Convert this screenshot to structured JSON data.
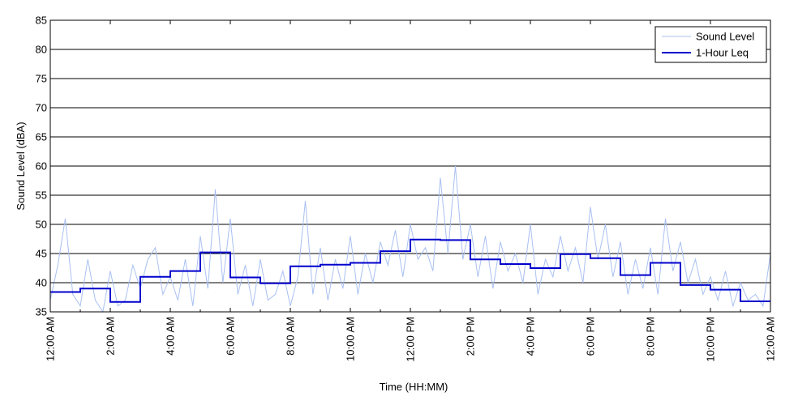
{
  "chart_data": {
    "type": "line",
    "title": "",
    "xlabel": "Time (HH:MM)",
    "ylabel": "Sound Level (dBA)",
    "ylim": [
      35,
      85
    ],
    "xlim": [
      0,
      24
    ],
    "yticks": [
      35,
      40,
      45,
      50,
      55,
      60,
      65,
      70,
      75,
      80,
      85
    ],
    "x_ticks": [
      {
        "hour": 0,
        "label": "12:00 AM"
      },
      {
        "hour": 2,
        "label": "2:00 AM"
      },
      {
        "hour": 4,
        "label": "4:00 AM"
      },
      {
        "hour": 6,
        "label": "6:00 AM"
      },
      {
        "hour": 8,
        "label": "8:00 AM"
      },
      {
        "hour": 10,
        "label": "10:00 AM"
      },
      {
        "hour": 12,
        "label": "12:00 PM"
      },
      {
        "hour": 14,
        "label": "2:00 PM"
      },
      {
        "hour": 16,
        "label": "4:00 PM"
      },
      {
        "hour": 18,
        "label": "6:00 PM"
      },
      {
        "hour": 20,
        "label": "8:00 PM"
      },
      {
        "hour": 22,
        "label": "10:00 PM"
      },
      {
        "hour": 24,
        "label": "12:00 AM"
      }
    ],
    "grid": "horizontal",
    "legend_position": "top-right",
    "series": [
      {
        "name": "Sound Level",
        "color": "#a9c0f2",
        "style": "thin-line",
        "x": [
          0,
          0.25,
          0.5,
          0.75,
          1,
          1.25,
          1.5,
          1.75,
          2,
          2.25,
          2.5,
          2.75,
          3,
          3.25,
          3.5,
          3.75,
          4,
          4.25,
          4.5,
          4.75,
          5,
          5.25,
          5.5,
          5.75,
          6,
          6.25,
          6.5,
          6.75,
          7,
          7.25,
          7.5,
          7.75,
          8,
          8.25,
          8.5,
          8.75,
          9,
          9.25,
          9.5,
          9.75,
          10,
          10.25,
          10.5,
          10.75,
          11,
          11.25,
          11.5,
          11.75,
          12,
          12.25,
          12.5,
          12.75,
          13,
          13.25,
          13.5,
          13.75,
          14,
          14.25,
          14.5,
          14.75,
          15,
          15.25,
          15.5,
          15.75,
          16,
          16.25,
          16.5,
          16.75,
          17,
          17.25,
          17.5,
          17.75,
          18,
          18.25,
          18.5,
          18.75,
          19,
          19.25,
          19.5,
          19.75,
          20,
          20.25,
          20.5,
          20.75,
          21,
          21.25,
          21.5,
          21.75,
          22,
          22.25,
          22.5,
          22.75,
          23,
          23.25,
          23.5,
          23.75,
          24
        ],
        "values": [
          37,
          43,
          51,
          38,
          36,
          44,
          37,
          35,
          42,
          36,
          37,
          43,
          39,
          44,
          46,
          38,
          41,
          37,
          44,
          36,
          48,
          39,
          56,
          40,
          51,
          38,
          43,
          36,
          44,
          37,
          38,
          42,
          36,
          41,
          54,
          38,
          46,
          37,
          44,
          39,
          48,
          38,
          45,
          40,
          47,
          43,
          49,
          41,
          50,
          44,
          46,
          42,
          58,
          45,
          60,
          44,
          50,
          41,
          48,
          39,
          47,
          42,
          45,
          40,
          50,
          38,
          44,
          41,
          48,
          42,
          46,
          40,
          53,
          44,
          50,
          41,
          47,
          38,
          44,
          39,
          46,
          38,
          51,
          42,
          47,
          40,
          44,
          38,
          41,
          37,
          42,
          36,
          40,
          37,
          38,
          36,
          45
        ]
      },
      {
        "name": "1-Hour Leq",
        "color": "#0000cc",
        "style": "step",
        "values": [
          38.4,
          39.0,
          36.7,
          41.0,
          42.0,
          45.2,
          40.9,
          39.9,
          42.8,
          43.1,
          43.4,
          45.4,
          47.4,
          47.3,
          44.0,
          43.2,
          42.5,
          44.9,
          44.2,
          41.3,
          43.4,
          39.6,
          38.8,
          36.8
        ]
      }
    ]
  }
}
